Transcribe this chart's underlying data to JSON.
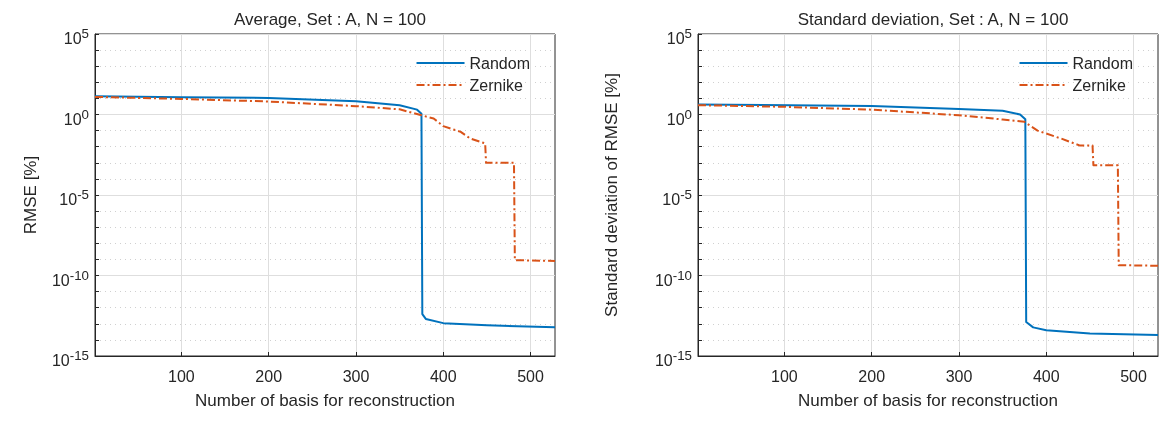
{
  "chart_data": [
    {
      "type": "line",
      "title": "Average, Set : A, N = 100",
      "xlabel": "Number of basis for reconstruction",
      "ylabel": "RMSE [%]",
      "log": "y",
      "grid": true,
      "legend": "top right",
      "xlim": [
        1,
        528
      ],
      "xticks": [
        100,
        200,
        300,
        400,
        500
      ],
      "ylim": [
        1e-15,
        100000
      ],
      "yticks": [
        {
          "value": 1e-15,
          "label": "10$^{-15}$"
        },
        {
          "value": 1e-14,
          "label": null
        },
        {
          "value": 1e-13,
          "label": null
        },
        {
          "value": 1e-12,
          "label": null
        },
        {
          "value": 1e-11,
          "label": null
        },
        {
          "value": 1e-10,
          "label": "10$^{-10}$"
        },
        {
          "value": 1e-09,
          "label": null
        },
        {
          "value": 1e-08,
          "label": null
        },
        {
          "value": 1e-07,
          "label": null
        },
        {
          "value": 1e-06,
          "label": null
        },
        {
          "value": 1e-05,
          "label": "10$^{-5}$"
        },
        {
          "value": 0.0001,
          "label": null
        },
        {
          "value": 0.001,
          "label": null
        },
        {
          "value": 0.01,
          "label": null
        },
        {
          "value": 0.1,
          "label": null
        },
        {
          "value": 1,
          "label": "10$^{0}$"
        },
        {
          "value": 10,
          "label": null
        },
        {
          "value": 100,
          "label": null
        },
        {
          "value": 1000,
          "label": null
        },
        {
          "value": 10000,
          "label": null
        },
        {
          "value": 100000,
          "label": "10$^{5}$"
        }
      ],
      "series": [
        {
          "name": "Random",
          "color": "#0072bd",
          "line_style": "solid",
          "x": [
            1,
            100,
            200,
            300,
            350,
            370,
            375,
            376,
            380,
            400,
            450,
            528
          ],
          "values": [
            13.8,
            12,
            10.7,
            6.7,
            3.8,
            2,
            1.1,
            4e-13,
            2e-13,
            1.1e-13,
            8e-14,
            6e-14
          ]
        },
        {
          "name": "Zernike",
          "color": "#d95319",
          "line_style": "dashed",
          "x": [
            1,
            100,
            200,
            300,
            350,
            375,
            389,
            400,
            420,
            431,
            448,
            449,
            481,
            482,
            528
          ],
          "values": [
            12.4,
            9.3,
            6.4,
            3.3,
            2.1,
            0.9,
            0.56,
            0.19,
            0.083,
            0.032,
            0.016,
            0.001,
            0.001,
            9e-10,
            8e-10
          ]
        }
      ]
    },
    {
      "type": "line",
      "title": "Standard deviation, Set : A, N = 100",
      "xlabel": "Number of basis for reconstruction",
      "ylabel": "Standard deviation of RMSE [%]",
      "log": "y",
      "grid": true,
      "legend": "top right",
      "xlim": [
        1,
        528
      ],
      "xticks": [
        100,
        200,
        300,
        400,
        500
      ],
      "ylim": [
        1e-15,
        100000
      ],
      "yticks": [
        {
          "value": 1e-15,
          "label": "10$^{-15}$"
        },
        {
          "value": 1e-14,
          "label": null
        },
        {
          "value": 1e-13,
          "label": null
        },
        {
          "value": 1e-12,
          "label": null
        },
        {
          "value": 1e-11,
          "label": null
        },
        {
          "value": 1e-10,
          "label": "10$^{-10}$"
        },
        {
          "value": 1e-09,
          "label": null
        },
        {
          "value": 1e-08,
          "label": null
        },
        {
          "value": 1e-07,
          "label": null
        },
        {
          "value": 1e-06,
          "label": null
        },
        {
          "value": 1e-05,
          "label": "10$^{-5}$"
        },
        {
          "value": 0.0001,
          "label": null
        },
        {
          "value": 0.001,
          "label": null
        },
        {
          "value": 0.01,
          "label": null
        },
        {
          "value": 0.1,
          "label": null
        },
        {
          "value": 1,
          "label": "10$^{0}$"
        },
        {
          "value": 10,
          "label": null
        },
        {
          "value": 100,
          "label": null
        },
        {
          "value": 1000,
          "label": null
        },
        {
          "value": 10000,
          "label": null
        },
        {
          "value": 100000,
          "label": "10$^{5}$"
        }
      ],
      "series": [
        {
          "name": "Random",
          "color": "#0072bd",
          "line_style": "solid",
          "x": [
            1,
            200,
            300,
            350,
            370,
            376,
            377,
            385,
            400,
            450,
            528
          ],
          "values": [
            4.2,
            3.4,
            2.2,
            1.7,
            1.0,
            0.5,
            1.3e-13,
            6e-14,
            4e-14,
            2.5e-14,
            2e-14
          ]
        },
        {
          "name": "Zernike",
          "color": "#d95319",
          "line_style": "dashed",
          "x": [
            1,
            100,
            200,
            300,
            350,
            375,
            390,
            417,
            438,
            453,
            454,
            482,
            483,
            528
          ],
          "values": [
            3.8,
            3,
            2,
            0.9,
            0.49,
            0.35,
            0.1,
            0.032,
            0.012,
            0.012,
            0.0007,
            0.0007,
            4.4e-10,
            4e-10
          ]
        }
      ]
    }
  ]
}
